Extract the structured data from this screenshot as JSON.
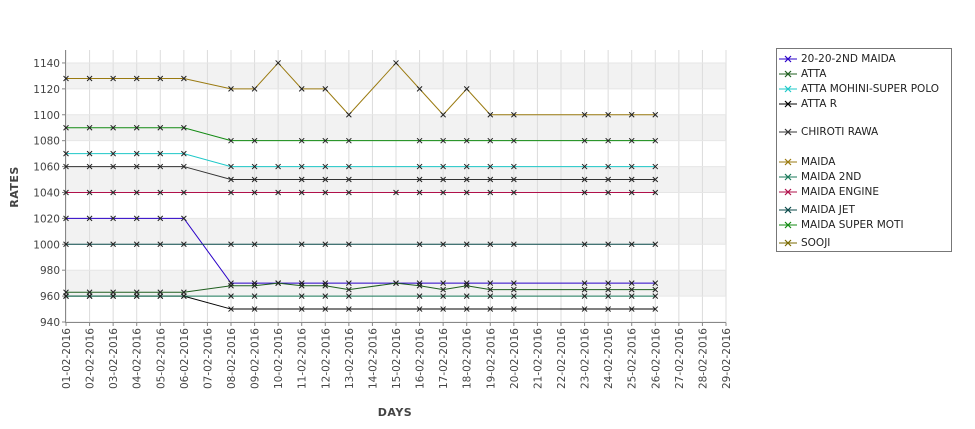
{
  "chart_data": {
    "type": "line",
    "title": "",
    "xlabel": "DAYS",
    "ylabel": "RATES",
    "ylim": [
      940,
      1150
    ],
    "yticks": [
      940,
      960,
      980,
      1000,
      1020,
      1040,
      1060,
      1080,
      1100,
      1120,
      1140
    ],
    "grid": true,
    "legend_position": "right",
    "x": [
      "01-02-2016",
      "02-02-2016",
      "03-02-2016",
      "04-02-2016",
      "05-02-2016",
      "06-02-2016",
      "07-02-2016",
      "08-02-2016",
      "09-02-2016",
      "10-02-2016",
      "11-02-2016",
      "12-02-2016",
      "13-02-2016",
      "14-02-2016",
      "15-02-2016",
      "16-02-2016",
      "17-02-2016",
      "18-02-2016",
      "19-02-2016",
      "20-02-2016",
      "21-02-2016",
      "22-02-2016",
      "23-02-2016",
      "24-02-2016",
      "25-02-2016",
      "26-02-2016",
      "27-02-2016",
      "28-02-2016",
      "29-02-2016"
    ],
    "series": [
      {
        "name": "20-20-2ND MAIDA",
        "color": "#2a00c8",
        "marker": "x",
        "values": [
          1020,
          1020,
          1020,
          1020,
          1020,
          1020,
          null,
          970,
          970,
          970,
          970,
          970,
          970,
          null,
          970,
          970,
          970,
          970,
          970,
          970,
          null,
          null,
          970,
          970,
          970,
          970,
          null,
          null,
          null
        ]
      },
      {
        "name": "ATTA",
        "color": "#1f5f1f",
        "marker": "x",
        "values": [
          963,
          963,
          963,
          963,
          963,
          963,
          null,
          968,
          968,
          970,
          968,
          968,
          965,
          null,
          970,
          968,
          965,
          968,
          965,
          965,
          null,
          null,
          965,
          965,
          965,
          965,
          null,
          null,
          null
        ]
      },
      {
        "name": "ATTA MOHINI-SUPER POLO",
        "color": "#1ec8c8",
        "marker": "x",
        "values": [
          1070,
          1070,
          1070,
          1070,
          1070,
          1070,
          null,
          1060,
          1060,
          1060,
          1060,
          1060,
          1060,
          null,
          null,
          1060,
          1060,
          1060,
          1060,
          1060,
          null,
          null,
          1060,
          1060,
          1060,
          1060,
          null,
          null,
          null
        ]
      },
      {
        "name": "ATTA R",
        "color": "#000000",
        "marker": "x",
        "values": [
          960,
          960,
          960,
          960,
          960,
          960,
          null,
          950,
          950,
          null,
          950,
          950,
          950,
          null,
          null,
          950,
          950,
          950,
          950,
          950,
          null,
          null,
          950,
          950,
          950,
          950,
          null,
          null,
          null
        ]
      },
      {
        "name": "CHIROTI RAWA",
        "color": "#333333",
        "marker": "x",
        "values": [
          1060,
          1060,
          1060,
          1060,
          1060,
          1060,
          null,
          1050,
          1050,
          null,
          1050,
          1050,
          1050,
          null,
          null,
          1050,
          1050,
          1050,
          1050,
          1050,
          null,
          null,
          1050,
          1050,
          1050,
          1050,
          null,
          null,
          null
        ]
      },
      {
        "name": "MAIDA",
        "color": "#9a7a10",
        "marker": "x",
        "values": [
          1128,
          1128,
          1128,
          1128,
          1128,
          1128,
          null,
          1120,
          1120,
          1140,
          1120,
          1120,
          1100,
          null,
          1140,
          1120,
          1100,
          1120,
          1100,
          1100,
          null,
          null,
          1100,
          1100,
          1100,
          1100,
          null,
          null,
          null
        ]
      },
      {
        "name": "MAIDA 2ND",
        "color": "#1a7a5a",
        "marker": "x",
        "values": [
          960,
          960,
          960,
          960,
          960,
          960,
          null,
          960,
          960,
          null,
          960,
          960,
          960,
          null,
          null,
          960,
          960,
          960,
          960,
          960,
          null,
          null,
          960,
          960,
          960,
          960,
          null,
          null,
          null
        ]
      },
      {
        "name": "MAIDA ENGINE",
        "color": "#b0104a",
        "marker": "x",
        "values": [
          1040,
          1040,
          1040,
          1040,
          1040,
          1040,
          null,
          1040,
          1040,
          1040,
          1040,
          1040,
          1040,
          null,
          1040,
          1040,
          1040,
          1040,
          1040,
          1040,
          null,
          null,
          1040,
          1040,
          1040,
          1040,
          null,
          null,
          null
        ]
      },
      {
        "name": "MAIDA JET",
        "color": "#0b4a4a",
        "marker": "x",
        "values": [
          1000,
          1000,
          1000,
          1000,
          1000,
          1000,
          null,
          1000,
          1000,
          null,
          1000,
          1000,
          1000,
          null,
          null,
          1000,
          1000,
          1000,
          1000,
          1000,
          null,
          null,
          1000,
          1000,
          1000,
          1000,
          null,
          null,
          null
        ]
      },
      {
        "name": "MAIDA SUPER MOTI",
        "color": "#128a12",
        "marker": "x",
        "values": [
          1090,
          1090,
          1090,
          1090,
          1090,
          1090,
          null,
          1080,
          1080,
          null,
          1080,
          1080,
          1080,
          null,
          null,
          1080,
          1080,
          1080,
          1080,
          1080,
          null,
          null,
          1080,
          1080,
          1080,
          1080,
          null,
          null,
          null
        ]
      },
      {
        "name": "SOOJI",
        "color": "#7a6a00",
        "marker": "x",
        "values": [
          null,
          null,
          null,
          null,
          null,
          null,
          null,
          null,
          null,
          null,
          null,
          null,
          null,
          null,
          null,
          null,
          null,
          null,
          null,
          null,
          null,
          null,
          null,
          null,
          null,
          null,
          null,
          null,
          null
        ]
      }
    ]
  }
}
